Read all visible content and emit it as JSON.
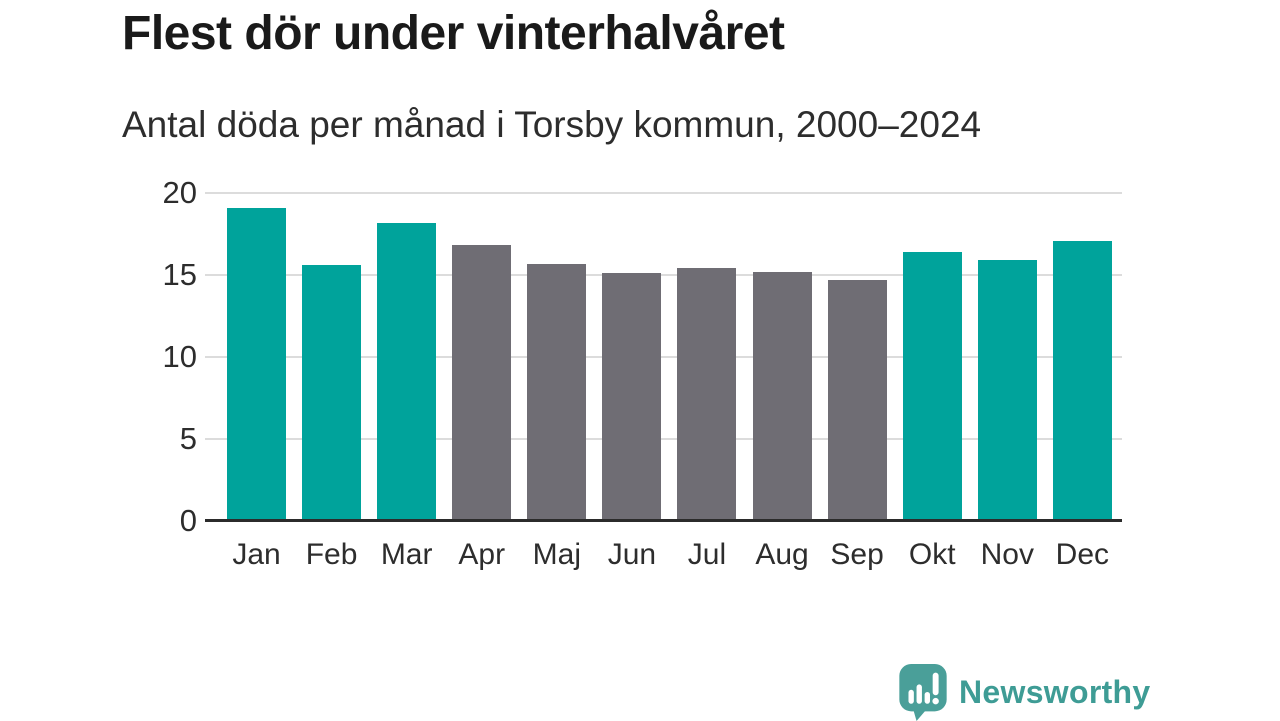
{
  "header": {
    "title": "Flest dör under vinterhalvåret",
    "subtitle": "Antal döda per månad i Torsby kommun, 2000–2024"
  },
  "chart_data": {
    "type": "bar",
    "title": "Flest dör under vinterhalvåret",
    "subtitle": "Antal döda per månad i Torsby kommun, 2000–2024",
    "categories": [
      "Jan",
      "Feb",
      "Mar",
      "Apr",
      "Maj",
      "Jun",
      "Jul",
      "Aug",
      "Sep",
      "Okt",
      "Nov",
      "Dec"
    ],
    "values": [
      19.1,
      15.6,
      18.2,
      16.8,
      15.7,
      15.1,
      15.4,
      15.2,
      14.7,
      16.4,
      15.9,
      17.1
    ],
    "bar_colors": [
      "teal",
      "teal",
      "teal",
      "gray",
      "gray",
      "gray",
      "gray",
      "gray",
      "gray",
      "teal",
      "teal",
      "teal"
    ],
    "colors": {
      "teal": "#00a39b",
      "gray": "#6f6d74"
    },
    "color_meaning": {
      "teal": "winter half-year months",
      "gray": "summer half-year months"
    },
    "xlabel": "",
    "ylabel": "",
    "ylim": [
      0,
      20
    ],
    "yticks": [
      0,
      5,
      10,
      15,
      20
    ],
    "grid": "horizontal",
    "gridline_color": "#dcdcdc",
    "axis_line_color": "#2b2b2b",
    "legend": "none"
  },
  "footer": {
    "brand": "Newsworthy",
    "brand_color": "#3e9c95",
    "logo_icon": "newsworthy-speech-bubble-bar-chart-icon",
    "logo_bubble_color": "#4a9f99"
  }
}
